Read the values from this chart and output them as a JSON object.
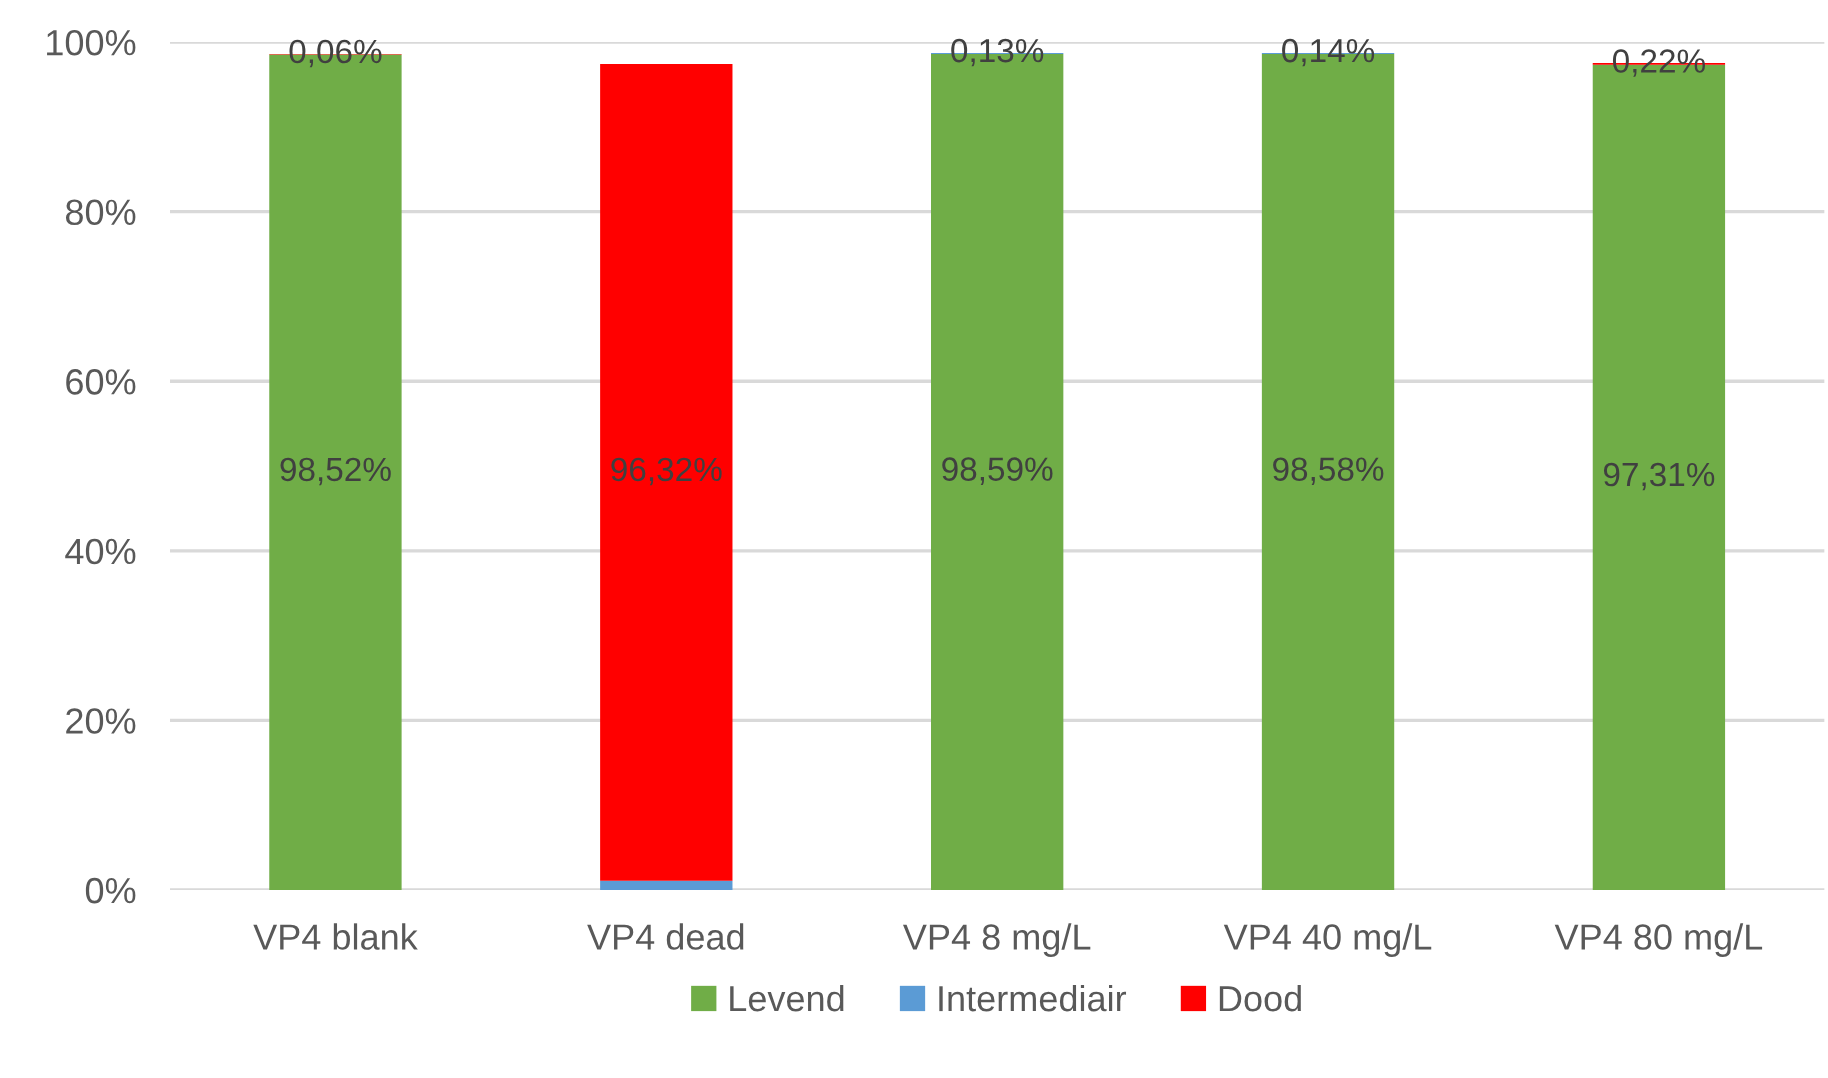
{
  "chart_data": {
    "type": "bar",
    "stacked": true,
    "categories": [
      "VP4 blank",
      "VP4 dead",
      "VP4 8 mg/L",
      "VP4 40 mg/L",
      "VP4 80 mg/L"
    ],
    "series": [
      {
        "name": "Levend",
        "color": "#70ad47",
        "values": [
          98.52,
          null,
          98.59,
          98.58,
          97.31
        ],
        "value_labels": [
          "98,52%",
          null,
          "98,59%",
          "98,58%",
          "97,31%"
        ]
      },
      {
        "name": "Intermediair",
        "color": "#5b9bd5",
        "values": [
          null,
          1.1,
          0.13,
          0.14,
          null
        ],
        "value_labels": [
          null,
          null,
          "0,13%",
          "0,14%",
          null
        ]
      },
      {
        "name": "Dood",
        "color": "#ff0000",
        "values": [
          0.06,
          96.32,
          null,
          null,
          0.22
        ],
        "value_labels": [
          "0,06%",
          "96,32%",
          null,
          null,
          "0,22%"
        ]
      }
    ],
    "ylim": [
      0,
      100
    ],
    "yticks": [
      {
        "value": 0,
        "label": "0%"
      },
      {
        "value": 20,
        "label": "20%"
      },
      {
        "value": 40,
        "label": "40%"
      },
      {
        "value": 60,
        "label": "60%"
      },
      {
        "value": 80,
        "label": "80%"
      },
      {
        "value": 100,
        "label": "100%"
      }
    ],
    "grid": "y",
    "legend": "bottom"
  }
}
